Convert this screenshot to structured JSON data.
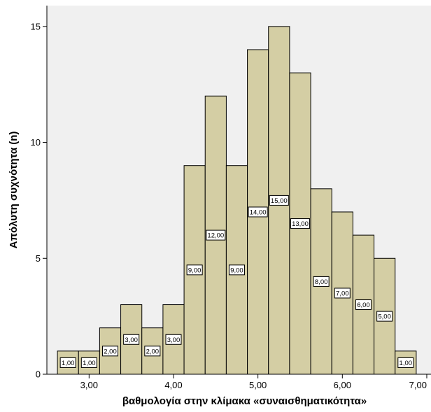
{
  "chart_data": {
    "type": "bar",
    "subtype": "histogram",
    "xlabel": "βαθμολογία στην κλίμακα «συναισθηματικότητα»",
    "ylabel": "Απόλυτη συχνότητα (n)",
    "xlim": [
      2.5,
      7.05
    ],
    "ylim": [
      0,
      15.9
    ],
    "x_ticks": [
      3,
      4,
      5,
      6,
      7
    ],
    "x_tick_labels": [
      "3,00",
      "4,00",
      "5,00",
      "6,00",
      "7,00"
    ],
    "y_ticks": [
      0,
      5,
      10,
      15
    ],
    "y_tick_labels": [
      "0",
      "5",
      "10",
      "15"
    ],
    "grid": false,
    "legend": "none",
    "bins": [
      {
        "x0": 2.625,
        "x1": 2.875,
        "value": 1,
        "label": "1,00"
      },
      {
        "x0": 2.875,
        "x1": 3.125,
        "value": 1,
        "label": "1,00"
      },
      {
        "x0": 3.125,
        "x1": 3.375,
        "value": 2,
        "label": "2,00"
      },
      {
        "x0": 3.375,
        "x1": 3.625,
        "value": 3,
        "label": "3,00"
      },
      {
        "x0": 3.625,
        "x1": 3.875,
        "value": 2,
        "label": "2,00"
      },
      {
        "x0": 3.875,
        "x1": 4.125,
        "value": 3,
        "label": "3,00"
      },
      {
        "x0": 4.125,
        "x1": 4.375,
        "value": 9,
        "label": "9,00"
      },
      {
        "x0": 4.375,
        "x1": 4.625,
        "value": 12,
        "label": "12,00"
      },
      {
        "x0": 4.625,
        "x1": 4.875,
        "value": 9,
        "label": "9,00"
      },
      {
        "x0": 4.875,
        "x1": 5.125,
        "value": 14,
        "label": "14,00"
      },
      {
        "x0": 5.125,
        "x1": 5.375,
        "value": 15,
        "label": "15,00"
      },
      {
        "x0": 5.375,
        "x1": 5.625,
        "value": 13,
        "label": "13,00"
      },
      {
        "x0": 5.625,
        "x1": 5.875,
        "value": 8,
        "label": "8,00"
      },
      {
        "x0": 5.875,
        "x1": 6.125,
        "value": 7,
        "label": "7,00"
      },
      {
        "x0": 6.125,
        "x1": 6.375,
        "value": 6,
        "label": "6,00"
      },
      {
        "x0": 6.375,
        "x1": 6.625,
        "value": 5,
        "label": "5,00"
      },
      {
        "x0": 6.625,
        "x1": 6.875,
        "value": 1,
        "label": "1,00"
      }
    ]
  },
  "colors": {
    "plot_background": "#f0f0f0",
    "bar_fill": "#d4cea4",
    "bar_stroke": "#000000",
    "axis": "#000000",
    "label_box": "#ffffff"
  }
}
